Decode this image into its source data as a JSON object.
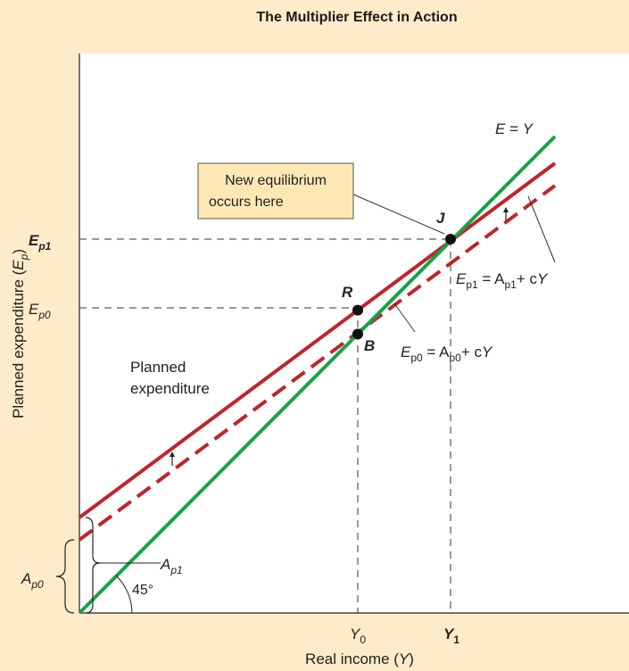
{
  "title": "The Multiplier Effect in Action",
  "colors": {
    "background": "#fdebc9",
    "plot_area": "#ffffff",
    "expenditure_line": "#c0242b",
    "forty_five_line": "#16a34a",
    "callout_fill": "#fde8b4"
  },
  "axes": {
    "x_label_main": "Real income (",
    "x_label_var": "Y",
    "x_label_close": ")",
    "y_label_main": "Planned expenditure (",
    "y_label_var": "E",
    "y_label_sub": "p",
    "y_label_close": ")"
  },
  "ticks": {
    "y0_var": "Y",
    "y0_sub": "0",
    "y1_var": "Y",
    "y1_sub": "1",
    "ep0_var": "E",
    "ep0_sub": "p0",
    "ep1_var": "E",
    "ep1_sub": "p1"
  },
  "lines": {
    "ey_lhs": "E",
    "ey_eq": " = ",
    "ey_rhs": "Y",
    "ep1_lhs": "E",
    "ep1_lhs_sub": "p1",
    "ep1_mid": " = A",
    "ep1_mid_sub": "p1",
    "ep1_end": "+ c",
    "ep1_end_var": "Y",
    "ep0_lhs": "E",
    "ep0_lhs_sub": "p0",
    "ep0_mid": " = A",
    "ep0_mid_sub": "p0",
    "ep0_end": "+ c",
    "ep0_end_var": "Y"
  },
  "points": {
    "j": "J",
    "r": "R",
    "b": "B"
  },
  "callout": {
    "line1": "New equilibrium",
    "line2": "occurs here"
  },
  "labels": {
    "planned_1": "Planned",
    "planned_2": "expenditure",
    "angle": "45°",
    "ap0_var": "A",
    "ap0_sub": "p0",
    "ap1_var": "A",
    "ap1_sub": "p1"
  }
}
